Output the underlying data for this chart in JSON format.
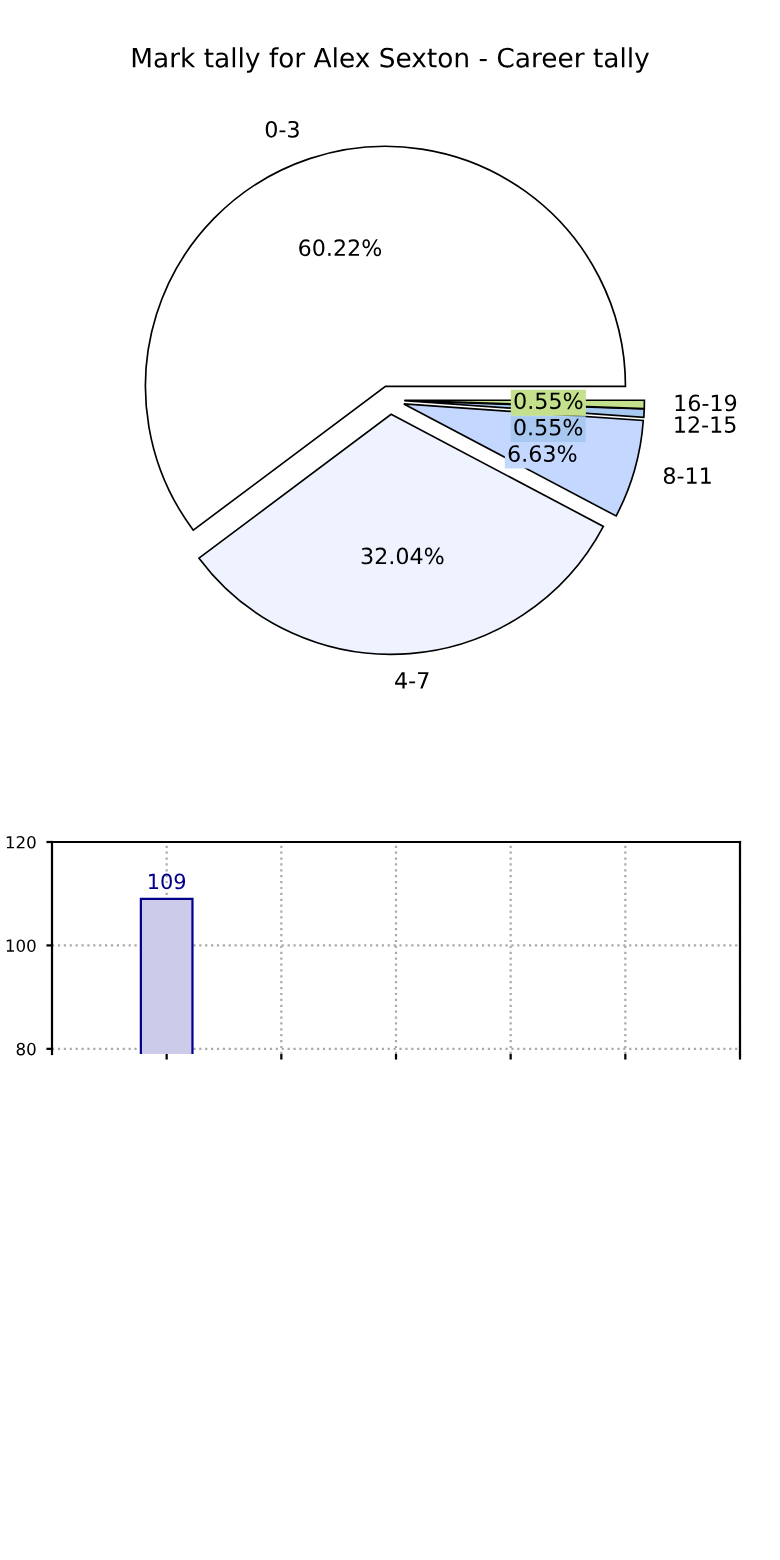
{
  "chart_data": [
    {
      "type": "pie",
      "title": "Mark tally for Alex Sexton - Career tally",
      "categories": [
        "0-3",
        "4-7",
        "8-11",
        "12-15",
        "16-19"
      ],
      "values": [
        60.22,
        32.04,
        6.63,
        0.55,
        0.55
      ],
      "value_labels": [
        "60.22%",
        "32.04%",
        "6.63%",
        "0.55%",
        "0.55%"
      ],
      "colors": [
        "#ffffff",
        "#eef3ff",
        "#c4d8ff",
        "#a8c8f0",
        "#c4e08c"
      ]
    },
    {
      "type": "bar",
      "categories": [
        null,
        null,
        null,
        null,
        null
      ],
      "values": [
        109,
        null,
        null,
        null,
        null
      ],
      "color": "#ccccea",
      "data_labels": true,
      "ylim": [
        79,
        120
      ],
      "yticks": [
        80,
        100,
        120
      ],
      "grid": true
    }
  ]
}
